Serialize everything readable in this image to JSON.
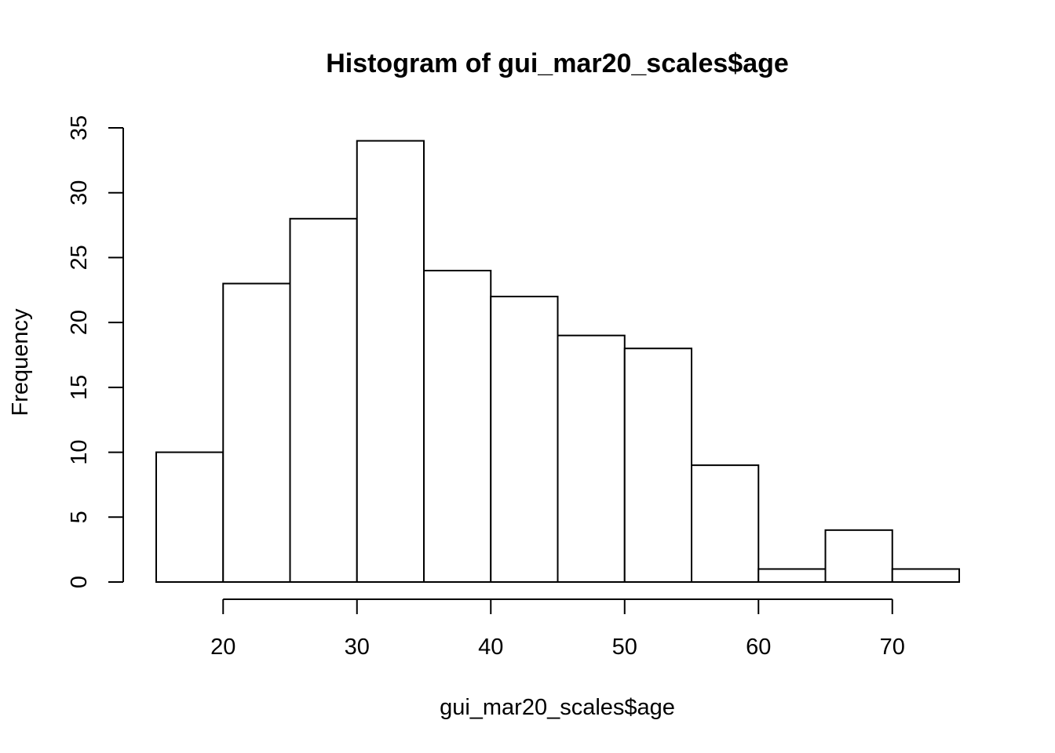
{
  "chart_data": {
    "type": "bar",
    "subtype": "histogram",
    "title": "Histogram of gui_mar20_scales$age",
    "xlabel": "gui_mar20_scales$age",
    "ylabel": "Frequency",
    "bins": [
      {
        "x0": 15,
        "x1": 20,
        "count": 10
      },
      {
        "x0": 20,
        "x1": 25,
        "count": 23
      },
      {
        "x0": 25,
        "x1": 30,
        "count": 28
      },
      {
        "x0": 30,
        "x1": 35,
        "count": 34
      },
      {
        "x0": 35,
        "x1": 40,
        "count": 24
      },
      {
        "x0": 40,
        "x1": 45,
        "count": 22
      },
      {
        "x0": 45,
        "x1": 50,
        "count": 19
      },
      {
        "x0": 50,
        "x1": 55,
        "count": 18
      },
      {
        "x0": 55,
        "x1": 60,
        "count": 9
      },
      {
        "x0": 60,
        "x1": 65,
        "count": 1
      },
      {
        "x0": 65,
        "x1": 70,
        "count": 4
      },
      {
        "x0": 70,
        "x1": 75,
        "count": 1
      }
    ],
    "xticks": [
      20,
      30,
      40,
      50,
      60,
      70
    ],
    "yticks": [
      0,
      5,
      10,
      15,
      20,
      25,
      30,
      35
    ],
    "xlim": [
      15,
      75
    ],
    "ylim": [
      0,
      35
    ],
    "grid": false,
    "legend": "none",
    "colors": {
      "bar_fill": "#ffffff",
      "bar_stroke": "#000000"
    }
  }
}
